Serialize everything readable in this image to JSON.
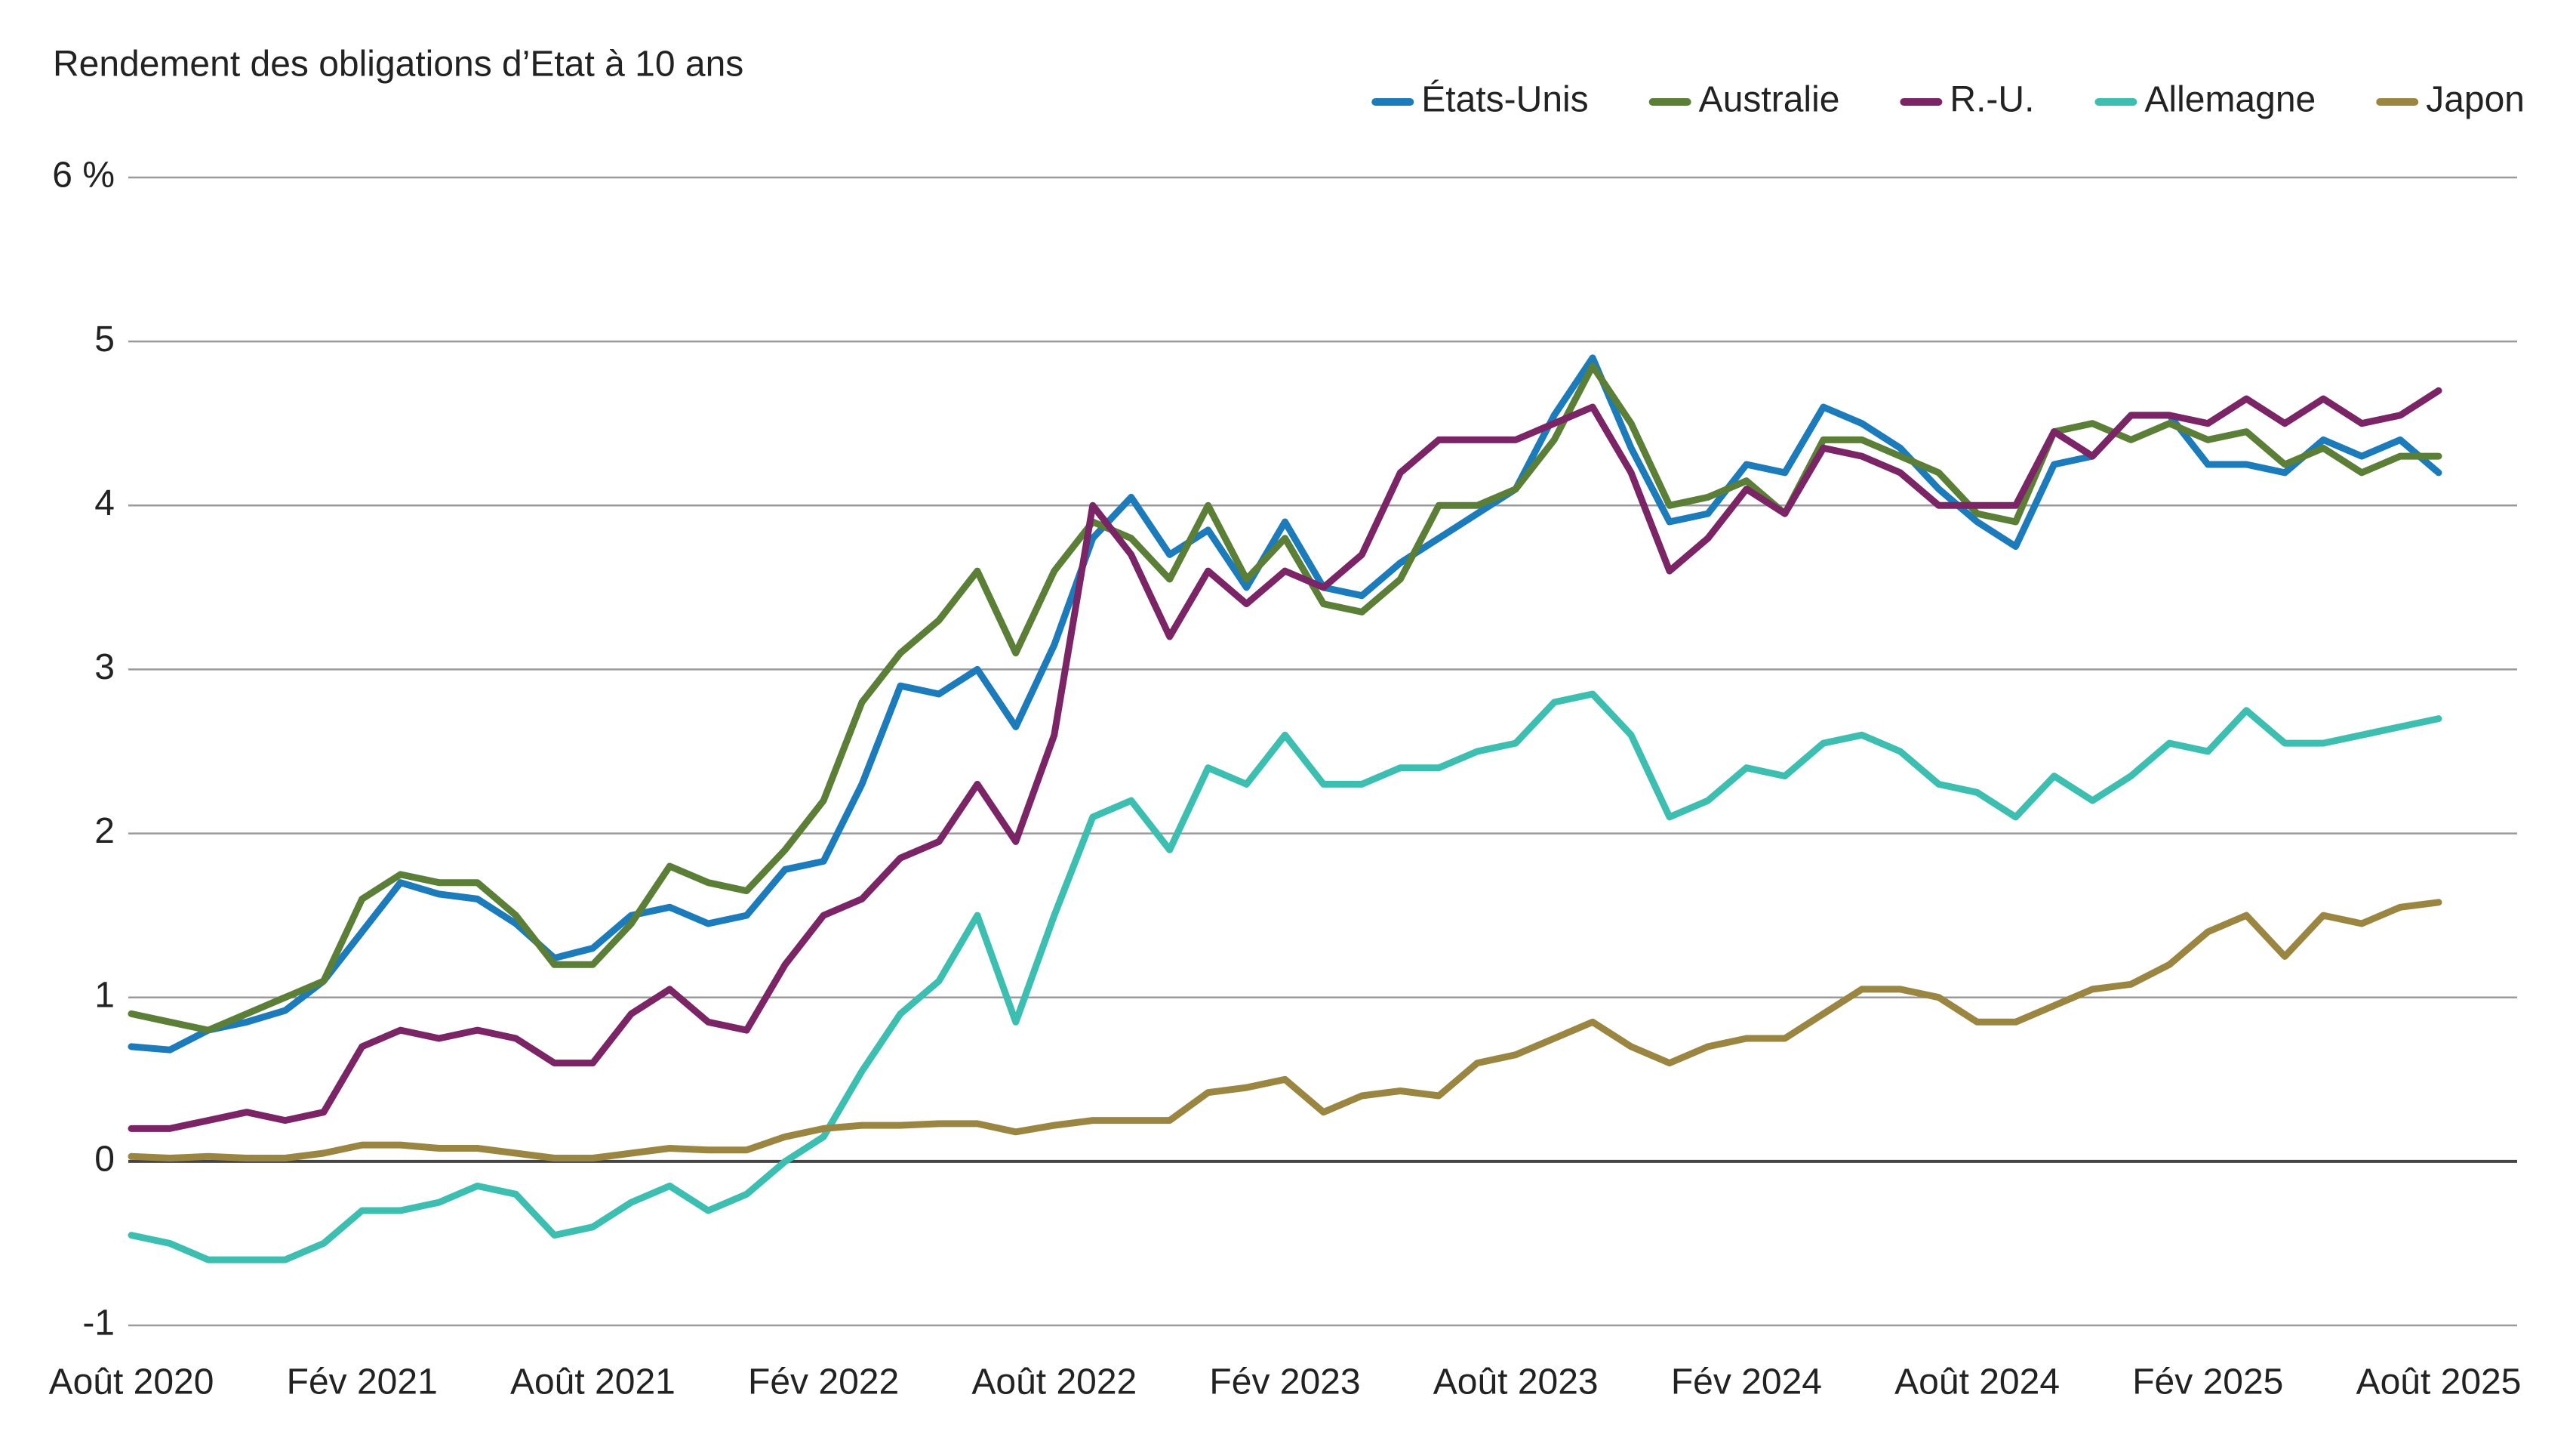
{
  "chart_data": {
    "type": "line",
    "title": "Rendement des obligations d’Etat à 10 ans",
    "categories": [
      "Août 2020",
      null,
      null,
      null,
      null,
      null,
      "Fév 2021",
      null,
      null,
      null,
      null,
      null,
      "Août 2021",
      null,
      null,
      null,
      null,
      null,
      "Fév 2022",
      null,
      null,
      null,
      null,
      null,
      "Août 2022",
      null,
      null,
      null,
      null,
      null,
      "Fév 2023",
      null,
      null,
      null,
      null,
      null,
      "Août 2023",
      null,
      null,
      null,
      null,
      null,
      "Fév 2024",
      null,
      null,
      null,
      null,
      null,
      "Août 2024",
      null,
      null,
      null,
      null,
      null,
      "Fév 2025",
      null,
      null,
      null,
      null,
      null,
      "Août 2025"
    ],
    "series": [
      {
        "name": "États-Unis",
        "color": "#1b7bbb",
        "values": [
          0.7,
          0.68,
          0.8,
          0.85,
          0.92,
          1.1,
          1.4,
          1.7,
          1.63,
          1.6,
          1.45,
          1.24,
          1.3,
          1.5,
          1.55,
          1.45,
          1.5,
          1.78,
          1.83,
          2.3,
          2.9,
          2.85,
          3.0,
          2.65,
          3.15,
          3.8,
          4.05,
          3.7,
          3.85,
          3.5,
          3.9,
          3.5,
          3.45,
          3.65,
          3.8,
          3.95,
          4.1,
          4.55,
          4.9,
          4.35,
          3.9,
          3.95,
          4.25,
          4.2,
          4.6,
          4.5,
          4.35,
          4.1,
          3.9,
          3.75,
          4.25,
          4.3,
          4.55,
          4.55,
          4.25,
          4.25,
          4.2,
          4.4,
          4.3,
          4.4,
          4.2
        ]
      },
      {
        "name": "Australie",
        "color": "#5b7f36",
        "values": [
          0.9,
          0.85,
          0.8,
          0.9,
          1.0,
          1.1,
          1.6,
          1.75,
          1.7,
          1.7,
          1.5,
          1.2,
          1.2,
          1.45,
          1.8,
          1.7,
          1.65,
          1.9,
          2.2,
          2.8,
          3.1,
          3.3,
          3.6,
          3.1,
          3.6,
          3.9,
          3.8,
          3.55,
          4.0,
          3.55,
          3.8,
          3.4,
          3.35,
          3.55,
          4.0,
          4.0,
          4.1,
          4.4,
          4.85,
          4.5,
          4.0,
          4.05,
          4.15,
          3.95,
          4.4,
          4.4,
          4.3,
          4.2,
          3.95,
          3.9,
          4.45,
          4.5,
          4.4,
          4.5,
          4.4,
          4.45,
          4.25,
          4.35,
          4.2,
          4.3,
          4.3
        ]
      },
      {
        "name": "R.-U.",
        "color": "#7b2466",
        "values": [
          0.2,
          0.2,
          0.25,
          0.3,
          0.25,
          0.3,
          0.7,
          0.8,
          0.75,
          0.8,
          0.75,
          0.6,
          0.6,
          0.9,
          1.05,
          0.85,
          0.8,
          1.2,
          1.5,
          1.6,
          1.85,
          1.95,
          2.3,
          1.95,
          2.6,
          4.0,
          3.7,
          3.2,
          3.6,
          3.4,
          3.6,
          3.5,
          3.7,
          4.2,
          4.4,
          4.4,
          4.4,
          4.5,
          4.6,
          4.2,
          3.6,
          3.8,
          4.1,
          3.95,
          4.35,
          4.3,
          4.2,
          4.0,
          4.0,
          4.0,
          4.45,
          4.3,
          4.55,
          4.55,
          4.5,
          4.65,
          4.5,
          4.65,
          4.5,
          4.55,
          4.7
        ]
      },
      {
        "name": "Allemagne",
        "color": "#3cbfb0",
        "values": [
          -0.45,
          -0.5,
          -0.6,
          -0.6,
          -0.6,
          -0.5,
          -0.3,
          -0.3,
          -0.25,
          -0.15,
          -0.2,
          -0.45,
          -0.4,
          -0.25,
          -0.15,
          -0.3,
          -0.2,
          0.0,
          0.15,
          0.55,
          0.9,
          1.1,
          1.5,
          0.85,
          1.5,
          2.1,
          2.2,
          1.9,
          2.4,
          2.3,
          2.6,
          2.3,
          2.3,
          2.4,
          2.4,
          2.5,
          2.55,
          2.8,
          2.85,
          2.6,
          2.1,
          2.2,
          2.4,
          2.35,
          2.55,
          2.6,
          2.5,
          2.3,
          2.25,
          2.1,
          2.35,
          2.2,
          2.35,
          2.55,
          2.5,
          2.75,
          2.55,
          2.55,
          2.6,
          2.65,
          2.7
        ]
      },
      {
        "name": "Japon",
        "color": "#9b8641",
        "values": [
          0.03,
          0.02,
          0.03,
          0.02,
          0.02,
          0.05,
          0.1,
          0.1,
          0.08,
          0.08,
          0.05,
          0.02,
          0.02,
          0.05,
          0.08,
          0.07,
          0.07,
          0.15,
          0.2,
          0.22,
          0.22,
          0.23,
          0.23,
          0.18,
          0.22,
          0.25,
          0.25,
          0.25,
          0.42,
          0.45,
          0.5,
          0.3,
          0.4,
          0.43,
          0.4,
          0.6,
          0.65,
          0.75,
          0.85,
          0.7,
          0.6,
          0.7,
          0.75,
          0.75,
          0.9,
          1.05,
          1.05,
          1.0,
          0.85,
          0.85,
          0.95,
          1.05,
          1.08,
          1.2,
          1.4,
          1.5,
          1.25,
          1.5,
          1.45,
          1.55,
          1.58
        ]
      }
    ],
    "ylim": [
      -1,
      6
    ],
    "yticks": [
      -1,
      0,
      1,
      2,
      3,
      4,
      5,
      {
        "value": 6,
        "label": "6 %"
      }
    ],
    "grid": true,
    "legend": "top-right"
  }
}
